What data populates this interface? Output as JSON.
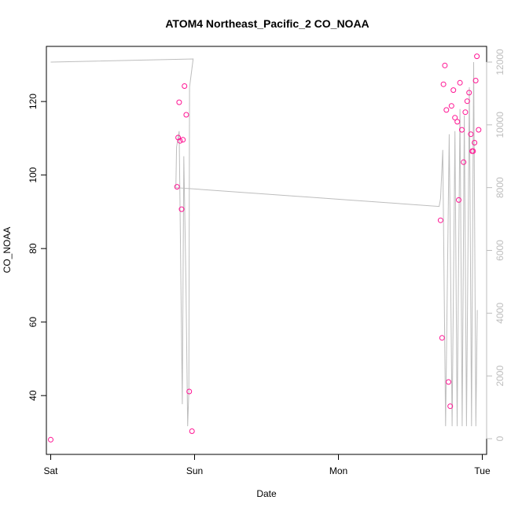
{
  "chart_data": {
    "type": "scatter",
    "title": "ATOM4 Northeast_Pacific_2 CO_NOAA",
    "xlabel": "Date",
    "ylabel": "CO_NOAA",
    "x_ticks": [
      {
        "label": "Sat",
        "value": 0
      },
      {
        "label": "Sun",
        "value": 1
      },
      {
        "label": "Mon",
        "value": 2
      },
      {
        "label": "Tue",
        "value": 3
      }
    ],
    "xlim": [
      -0.03,
      3.03
    ],
    "ylim": [
      24,
      135
    ],
    "y_ticks": [
      40,
      60,
      80,
      100,
      120
    ],
    "y2lim": [
      -500,
      12500
    ],
    "y2_ticks": [
      0,
      2000,
      4000,
      6000,
      8000,
      10000,
      12000
    ],
    "colors": {
      "points": "#ff1493",
      "secondary_line": "#bdbdbd",
      "axes": "#000000"
    },
    "series": [
      {
        "marker": "open-circle",
        "axis": "left",
        "points": [
          [
            0.0,
            28.0
          ],
          [
            0.878,
            96.8
          ],
          [
            0.886,
            110.2
          ],
          [
            0.893,
            119.8
          ],
          [
            0.899,
            109.3
          ],
          [
            0.91,
            90.7
          ],
          [
            0.919,
            109.6
          ],
          [
            0.93,
            124.2
          ],
          [
            0.942,
            116.4
          ],
          [
            0.963,
            41.1
          ],
          [
            0.982,
            30.3
          ],
          [
            2.71,
            87.7
          ],
          [
            2.72,
            55.7
          ],
          [
            2.73,
            124.7
          ],
          [
            2.74,
            129.8
          ],
          [
            2.75,
            117.7
          ],
          [
            2.765,
            43.7
          ],
          [
            2.777,
            37.1
          ],
          [
            2.786,
            118.8
          ],
          [
            2.799,
            123.1
          ],
          [
            2.81,
            115.6
          ],
          [
            2.826,
            114.5
          ],
          [
            2.836,
            93.2
          ],
          [
            2.845,
            125.1
          ],
          [
            2.858,
            112.3
          ],
          [
            2.87,
            103.5
          ],
          [
            2.882,
            117.1
          ],
          [
            2.895,
            120.1
          ],
          [
            2.908,
            122.4
          ],
          [
            2.92,
            111.1
          ],
          [
            2.929,
            106.5
          ],
          [
            2.936,
            106.5
          ],
          [
            2.946,
            108.8
          ],
          [
            2.954,
            125.7
          ],
          [
            2.962,
            132.3
          ],
          [
            2.974,
            112.3
          ]
        ]
      },
      {
        "marker": "line",
        "axis": "right",
        "points": [
          [
            0.0,
            12000
          ],
          [
            0.99,
            12100
          ],
          [
            0.965,
            11200
          ],
          [
            0.96,
            1500
          ],
          [
            0.952,
            400
          ],
          [
            0.94,
            5000
          ],
          [
            0.925,
            9000
          ],
          [
            0.915,
            1100
          ],
          [
            0.905,
            5000
          ],
          [
            0.893,
            9800
          ],
          [
            0.875,
            9300
          ],
          [
            0.87,
            8000
          ],
          [
            2.7,
            7400
          ],
          [
            2.71,
            7650
          ],
          [
            2.725,
            9200
          ],
          [
            2.745,
            400
          ],
          [
            2.77,
            9700
          ],
          [
            2.79,
            400
          ],
          [
            2.81,
            9800
          ],
          [
            2.825,
            400
          ],
          [
            2.845,
            10500
          ],
          [
            2.86,
            400
          ],
          [
            2.875,
            10300
          ],
          [
            2.89,
            400
          ],
          [
            2.91,
            11200
          ],
          [
            2.925,
            400
          ],
          [
            2.94,
            12000
          ],
          [
            2.955,
            400
          ],
          [
            2.965,
            4100
          ]
        ]
      }
    ]
  }
}
